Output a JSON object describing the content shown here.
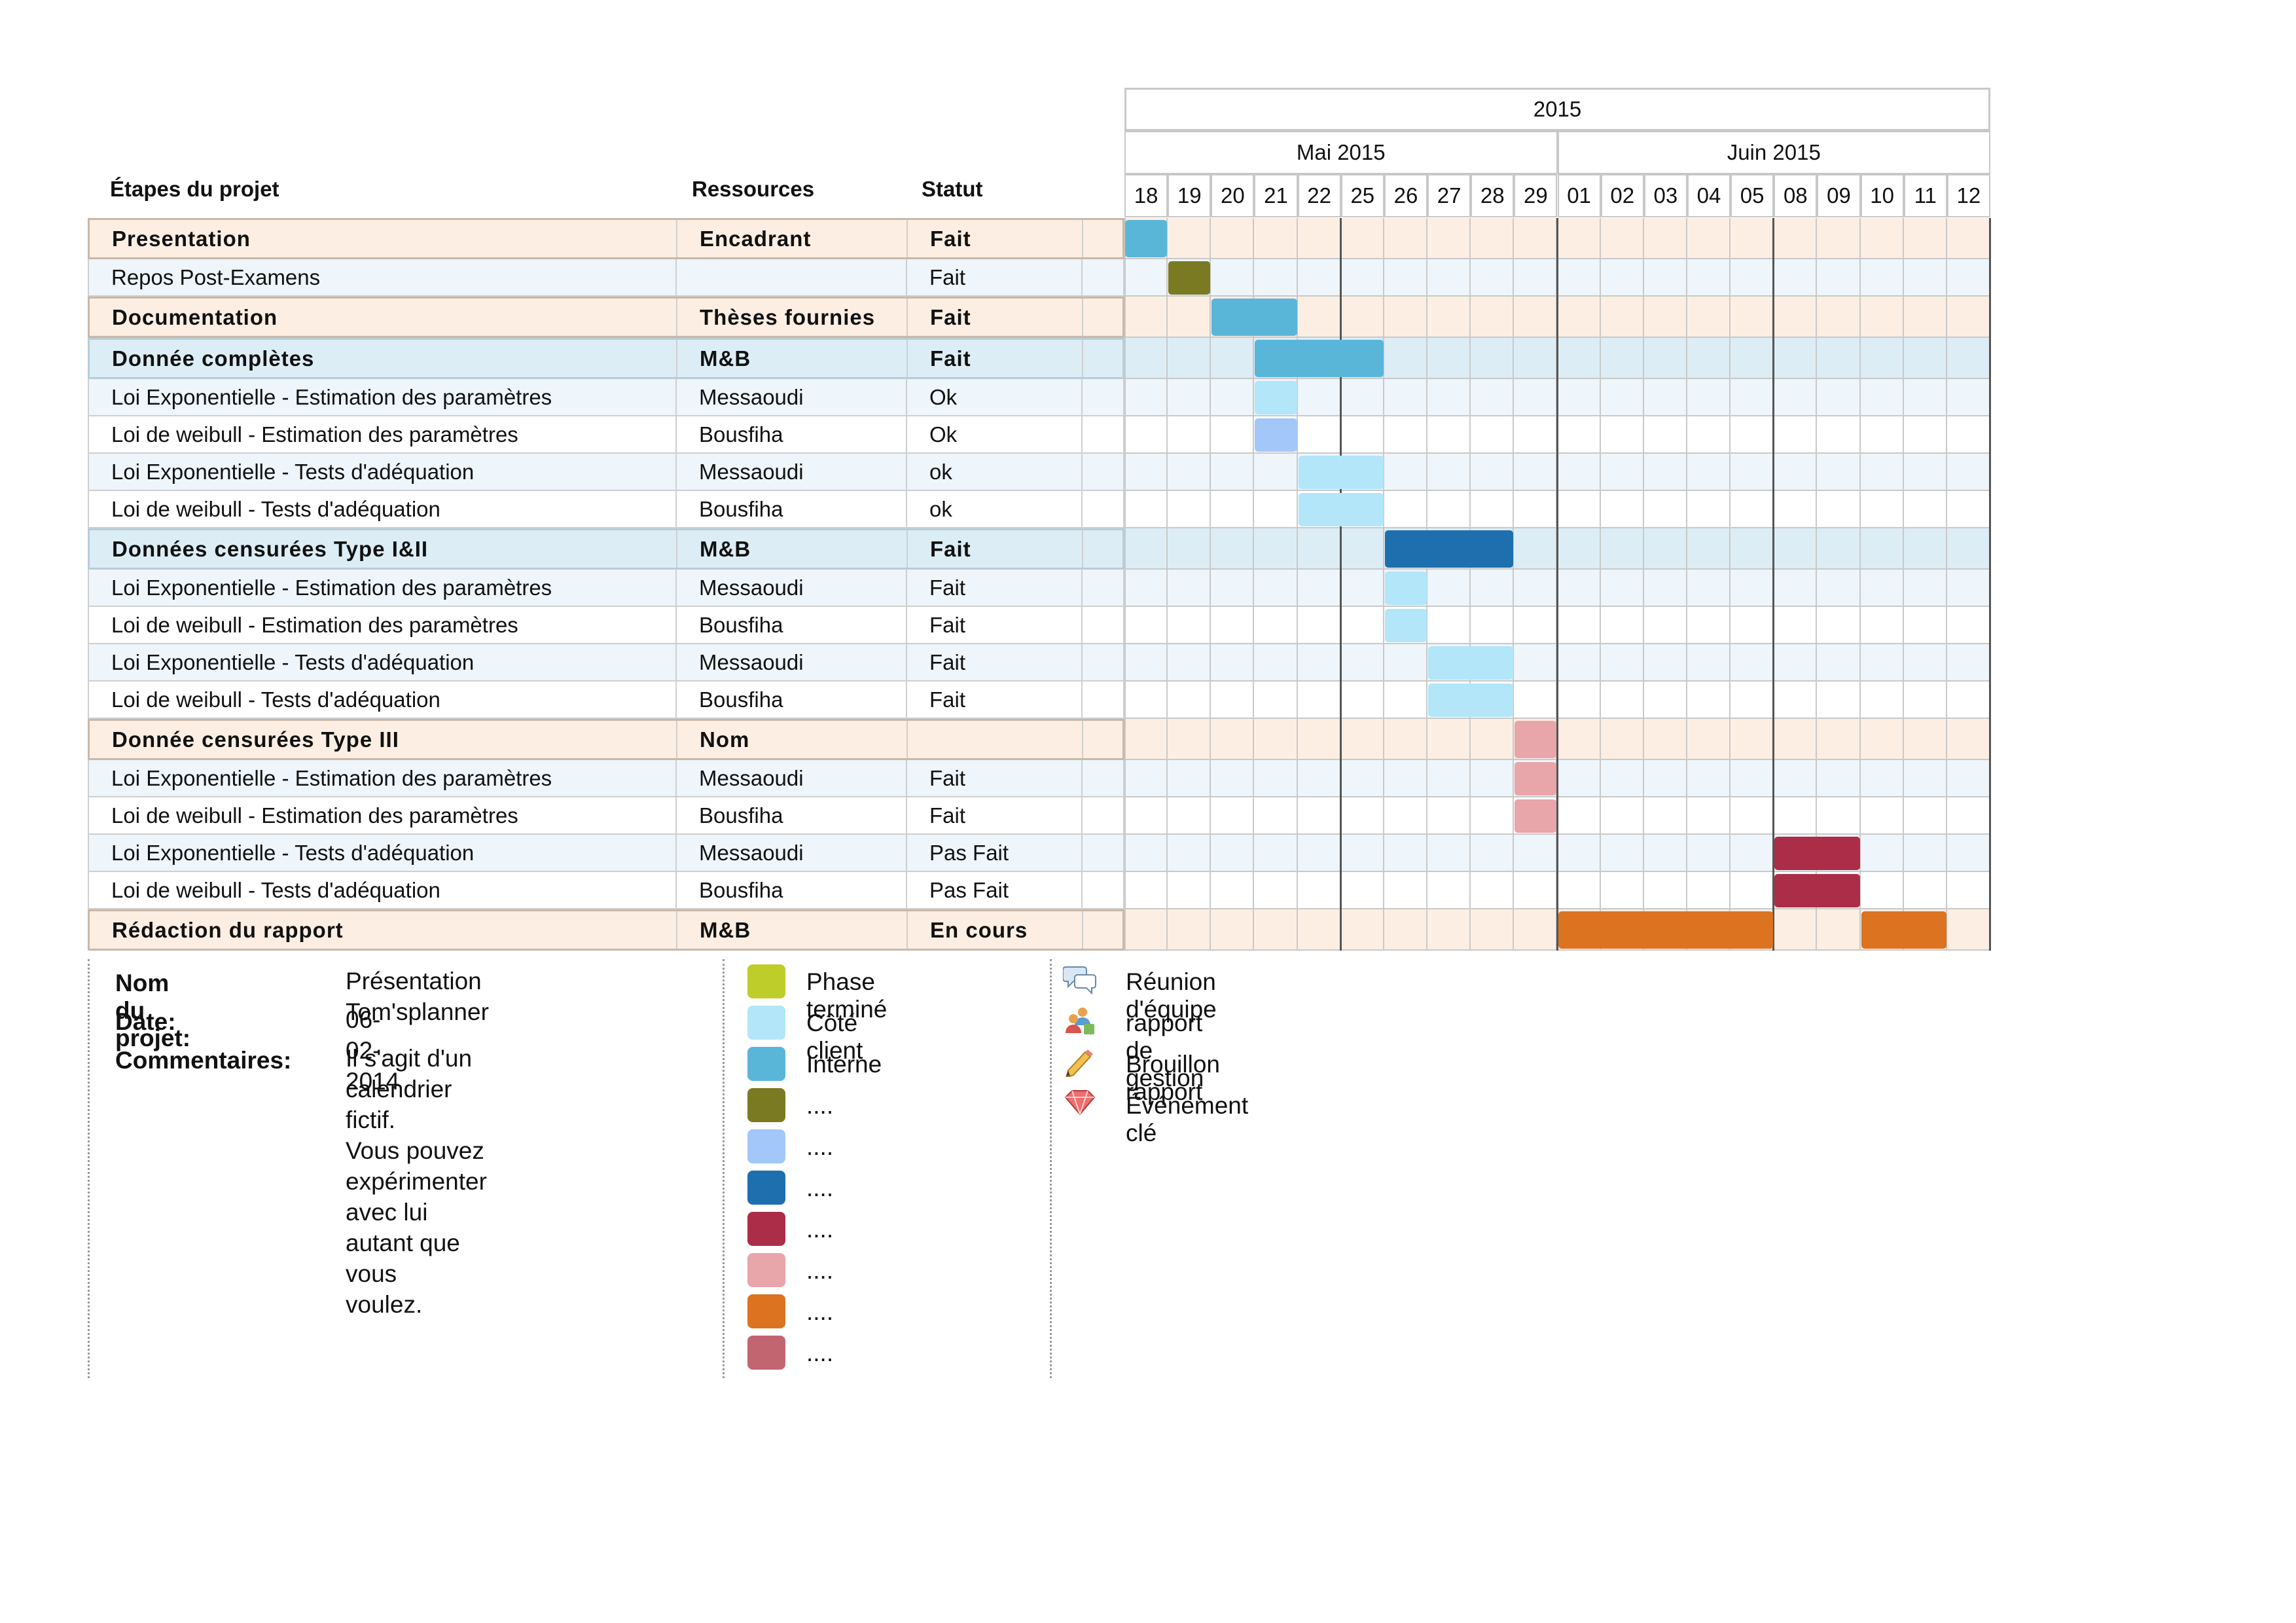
{
  "headers": {
    "steps": "Étapes du projet",
    "resources": "Ressources",
    "status": "Statut"
  },
  "timeline": {
    "year": "2015",
    "months": [
      {
        "label": "Mai 2015",
        "span": 10
      },
      {
        "label": "Juin 2015",
        "span": 10
      }
    ],
    "days": [
      "18",
      "19",
      "20",
      "21",
      "22",
      "25",
      "26",
      "27",
      "28",
      "29",
      "01",
      "02",
      "03",
      "04",
      "05",
      "08",
      "09",
      "10",
      "11",
      "12"
    ]
  },
  "colors": {
    "group_orange_bg": "#fdeee3",
    "group_blue_bg": "#dcedf6",
    "sub_blue_bg": "#eef5fb",
    "sub_white_bg": "#ffffff",
    "phase_termine": "#bfcd2b",
    "cote_client": "#b2e6f8",
    "interne": "#5ab6d8",
    "olive": "#7a7a22",
    "light_blue": "#a3c7f8",
    "dark_blue": "#1e6fae",
    "crimson": "#ac2d48",
    "pink": "#e8a5aa",
    "orange": "#dc7320",
    "rose": "#c26571"
  },
  "rows": [
    {
      "type": "group",
      "bg": "orange",
      "name": "Presentation",
      "resource": "Encadrant",
      "status": "Fait",
      "bars": [
        {
          "start": 0,
          "len": 1,
          "color": "interne"
        }
      ]
    },
    {
      "type": "sub",
      "bg": "blue",
      "name": "Repos Post-Examens",
      "resource": "",
      "status": "Fait",
      "bars": [
        {
          "start": 1,
          "len": 1,
          "color": "olive"
        }
      ]
    },
    {
      "type": "group",
      "bg": "orange",
      "name": "Documentation",
      "resource": "Thèses fournies",
      "status": "Fait",
      "bars": [
        {
          "start": 2,
          "len": 2,
          "color": "interne"
        }
      ]
    },
    {
      "type": "group",
      "bg": "blue",
      "name": "Donnée complètes",
      "resource": "M&B",
      "status": "Fait",
      "bars": [
        {
          "start": 3,
          "len": 3,
          "color": "interne"
        }
      ]
    },
    {
      "type": "sub",
      "bg": "blue",
      "name": "Loi Exponentielle - Estimation des paramètres",
      "resource": "Messaoudi",
      "status": "Ok",
      "bars": [
        {
          "start": 3,
          "len": 1,
          "color": "cote_client"
        }
      ]
    },
    {
      "type": "sub",
      "bg": "white",
      "name": "Loi de weibull - Estimation des paramètres",
      "resource": "Bousfiha",
      "status": "Ok",
      "bars": [
        {
          "start": 3,
          "len": 1,
          "color": "light_blue"
        }
      ]
    },
    {
      "type": "sub",
      "bg": "blue",
      "name": "Loi Exponentielle - Tests d'adéquation",
      "resource": "Messaoudi",
      "status": "ok",
      "bars": [
        {
          "start": 4,
          "len": 2,
          "color": "cote_client"
        }
      ]
    },
    {
      "type": "sub",
      "bg": "white",
      "name": "Loi de weibull - Tests d'adéquation",
      "resource": "Bousfiha",
      "status": "ok",
      "bars": [
        {
          "start": 4,
          "len": 2,
          "color": "cote_client"
        }
      ]
    },
    {
      "type": "group",
      "bg": "blue",
      "name": "Données censurées Type I&II",
      "resource": "M&B",
      "status": "Fait",
      "bars": [
        {
          "start": 6,
          "len": 3,
          "color": "dark_blue"
        }
      ]
    },
    {
      "type": "sub",
      "bg": "blue",
      "name": "Loi Exponentielle - Estimation des paramètres",
      "resource": "Messaoudi",
      "status": "Fait",
      "bars": [
        {
          "start": 6,
          "len": 1,
          "color": "cote_client"
        }
      ]
    },
    {
      "type": "sub",
      "bg": "white",
      "name": "Loi de weibull - Estimation des paramètres",
      "resource": "Bousfiha",
      "status": "Fait",
      "bars": [
        {
          "start": 6,
          "len": 1,
          "color": "cote_client"
        }
      ]
    },
    {
      "type": "sub",
      "bg": "blue",
      "name": "Loi Exponentielle - Tests d'adéquation",
      "resource": "Messaoudi",
      "status": "Fait",
      "bars": [
        {
          "start": 7,
          "len": 2,
          "color": "cote_client"
        }
      ]
    },
    {
      "type": "sub",
      "bg": "white",
      "name": "Loi de weibull - Tests d'adéquation",
      "resource": "Bousfiha",
      "status": "Fait",
      "bars": [
        {
          "start": 7,
          "len": 2,
          "color": "cote_client"
        }
      ]
    },
    {
      "type": "group",
      "bg": "orange",
      "name": "Donnée censurées Type III",
      "resource": "Nom",
      "status": "",
      "bars": [
        {
          "start": 9,
          "len": 1,
          "color": "pink"
        }
      ]
    },
    {
      "type": "sub",
      "bg": "blue",
      "name": "Loi Exponentielle - Estimation des paramètres",
      "resource": "Messaoudi",
      "status": "Fait",
      "bars": [
        {
          "start": 9,
          "len": 1,
          "color": "pink"
        }
      ]
    },
    {
      "type": "sub",
      "bg": "white",
      "name": "Loi de weibull - Estimation des paramètres",
      "resource": "Bousfiha",
      "status": "Fait",
      "bars": [
        {
          "start": 9,
          "len": 1,
          "color": "pink"
        }
      ]
    },
    {
      "type": "sub",
      "bg": "blue",
      "name": "Loi Exponentielle - Tests d'adéquation",
      "resource": "Messaoudi",
      "status": "Pas Fait",
      "bars": [
        {
          "start": 15,
          "len": 2,
          "color": "crimson"
        }
      ]
    },
    {
      "type": "sub",
      "bg": "white",
      "name": "Loi de weibull - Tests d'adéquation",
      "resource": "Bousfiha",
      "status": "Pas Fait",
      "bars": [
        {
          "start": 15,
          "len": 2,
          "color": "crimson"
        }
      ]
    },
    {
      "type": "group",
      "bg": "orange",
      "name": "Rédaction du rapport",
      "resource": "M&B",
      "status": "En cours",
      "bars": [
        {
          "start": 10,
          "len": 5,
          "color": "orange"
        },
        {
          "start": 17,
          "len": 2,
          "color": "orange"
        }
      ]
    }
  ],
  "project_info": {
    "name_label": "Nom du projet:",
    "name_value": "Présentation Tom'splanner",
    "date_label": "Date:",
    "date_value": "06-02-2014",
    "comments_label": "Commentaires:",
    "comments_lines": [
      "Il s'agit d'un calendrier fictif.",
      "Vous pouvez expérimenter",
      "avec lui autant que vous",
      "voulez."
    ]
  },
  "legend_colors": [
    {
      "color": "phase_termine",
      "label": "Phase terminé"
    },
    {
      "color": "cote_client",
      "label": "Côté client"
    },
    {
      "color": "interne",
      "label": "Interne"
    },
    {
      "color": "olive",
      "label": "...."
    },
    {
      "color": "light_blue",
      "label": "...."
    },
    {
      "color": "dark_blue",
      "label": "...."
    },
    {
      "color": "crimson",
      "label": "...."
    },
    {
      "color": "pink",
      "label": "...."
    },
    {
      "color": "orange",
      "label": "...."
    },
    {
      "color": "rose",
      "label": "...."
    }
  ],
  "legend_icons": [
    {
      "icon": "speech-bubbles-icon",
      "label": "Réunion d'équipe"
    },
    {
      "icon": "people-report-icon",
      "label": "rapport de gestion"
    },
    {
      "icon": "pencil-icon",
      "label": "Brouillon rapport"
    },
    {
      "icon": "gem-icon",
      "label": "Événement clé"
    }
  ]
}
